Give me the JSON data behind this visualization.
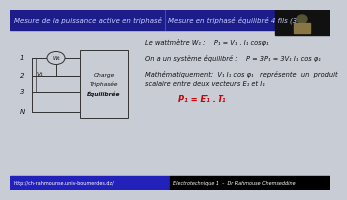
{
  "title_left": "Mesure de la puissance active en triphasé",
  "title_right": "Mesure en triphasé équilibré 4 fils (3 p",
  "title_bg": "#1c1c8a",
  "title_text_color": "#d0d0ff",
  "main_bg": "#c8ccd4",
  "footer_left_text": "http://ch-rahmounse.univ-boumerdes.dz/",
  "footer_right_text": "Electrotechnique 1  –  Dr Rahmouse Chemseddine",
  "footer_bg_left": "#2222bb",
  "footer_bg_right": "#000000",
  "footer_text_color": "#ffffff",
  "content_text_color": "#111111",
  "line1": "Le wattmètre W₁ :    P₁ = V₁ . I₁ cosφ₁",
  "line2": "On a un système équilibré :    P = 3P₁ = 3V₁ I₁ cos φ₁",
  "line3a": "Mathématiquement:  V₁ I₁ cos φ₁   représente  un  produit",
  "line3b": "scalaire entre deux vecteurs E₁ et I₁",
  "formula": "P₁ = E̅₁ . I̅₁",
  "diagram_labels_left": [
    "1",
    "2",
    "3",
    "N"
  ],
  "diagram_V_label": "V₁",
  "diagram_box_text": [
    "Charge",
    "Triphasée",
    "Équilibrée"
  ],
  "diagram_W_label": "W₁",
  "cam_bg": "#111111",
  "divider_color": "#4444cc"
}
